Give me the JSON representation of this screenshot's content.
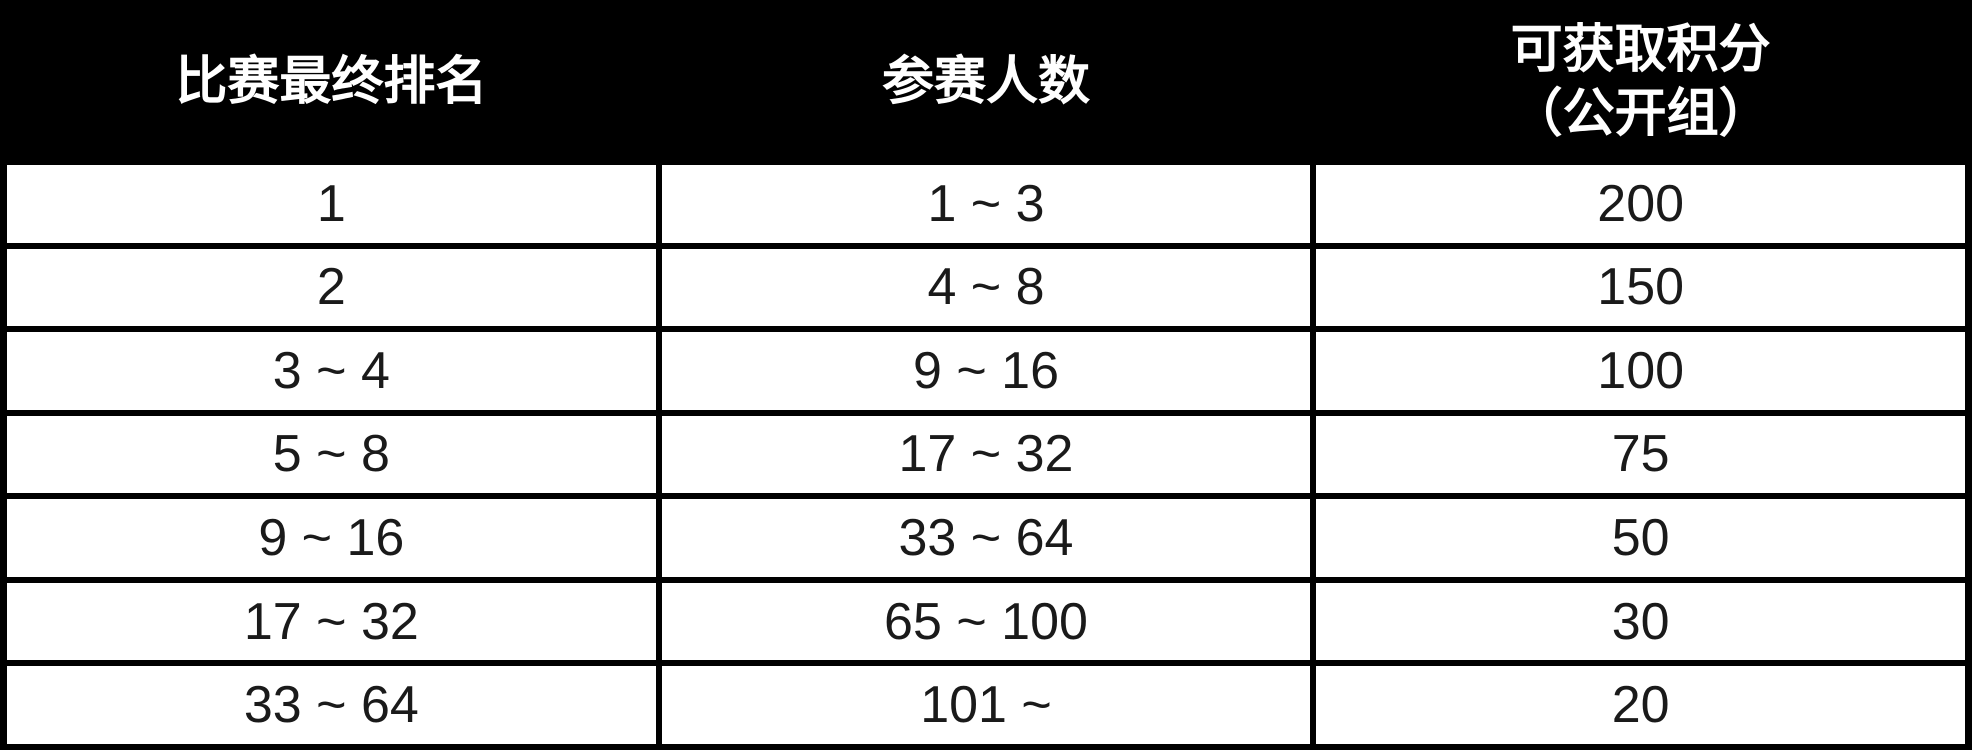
{
  "table": {
    "headers": [
      "比赛最终排名",
      "参赛人数",
      "可获取积分\n（公开组）"
    ],
    "rows": [
      [
        "1",
        "1 ~ 3",
        "200"
      ],
      [
        "2",
        "4 ~ 8",
        "150"
      ],
      [
        "3 ~ 4",
        "9 ~ 16",
        "100"
      ],
      [
        "5 ~ 8",
        "17 ~ 32",
        "75"
      ],
      [
        "9 ~ 16",
        "33 ~ 64",
        "50"
      ],
      [
        "17 ~ 32",
        "65 ~ 100",
        "30"
      ],
      [
        "33 ~ 64",
        "101 ~",
        "20"
      ]
    ],
    "colors": {
      "header_background": "#000000",
      "header_text": "#ffffff",
      "cell_background": "#ffffff",
      "cell_text": "#1a1a1a",
      "grid_lines": "#000000"
    }
  }
}
